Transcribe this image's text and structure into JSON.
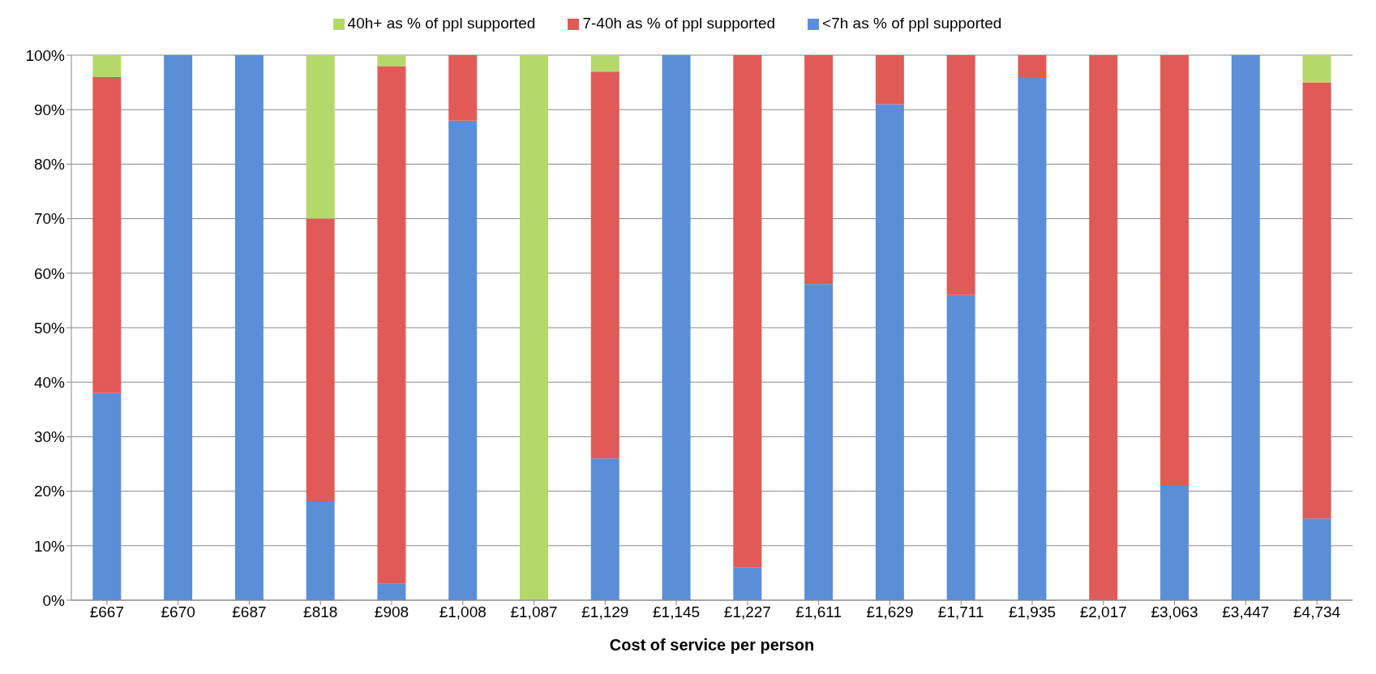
{
  "chart_data": {
    "type": "bar",
    "stacked": true,
    "xlabel": "Cost of service per person",
    "categories": [
      "£667",
      "£670",
      "£687",
      "£818",
      "£908",
      "£1,008",
      "£1,087",
      "£1,129",
      "£1,145",
      "£1,227",
      "£1,611",
      "£1,629",
      "£1,711",
      "£1,935",
      "£2,017",
      "£3,063",
      "£3,447",
      "£4,734"
    ],
    "series": [
      {
        "name": "<7h as % of ppl supported",
        "color": "#5a8fd8",
        "values": [
          38,
          100,
          100,
          18,
          3,
          88,
          0,
          26,
          100,
          6,
          58,
          91,
          56,
          96,
          0,
          21,
          100,
          15
        ]
      },
      {
        "name": "7-40h as % of ppl supported",
        "color": "#e05a58",
        "values": [
          58,
          0,
          0,
          52,
          95,
          12,
          0,
          71,
          0,
          94,
          42,
          9,
          44,
          4,
          100,
          79,
          0,
          80
        ]
      },
      {
        "name": "40h+ as % of ppl supported",
        "color": "#b5d86a",
        "values": [
          4,
          0,
          0,
          30,
          2,
          0,
          100,
          3,
          0,
          0,
          0,
          0,
          0,
          0,
          0,
          0,
          0,
          5
        ]
      }
    ],
    "ylim": [
      0,
      100
    ],
    "yticks": [
      {
        "value": 0,
        "label": "0%"
      },
      {
        "value": 10,
        "label": "10%"
      },
      {
        "value": 20,
        "label": "20%"
      },
      {
        "value": 30,
        "label": "30%"
      },
      {
        "value": 40,
        "label": "40%"
      },
      {
        "value": 50,
        "label": "50%"
      },
      {
        "value": 60,
        "label": "60%"
      },
      {
        "value": 70,
        "label": "70%"
      },
      {
        "value": 80,
        "label": "80%"
      },
      {
        "value": 90,
        "label": "90%"
      },
      {
        "value": 100,
        "label": "100%"
      }
    ],
    "grid": "y",
    "legend": "top"
  }
}
